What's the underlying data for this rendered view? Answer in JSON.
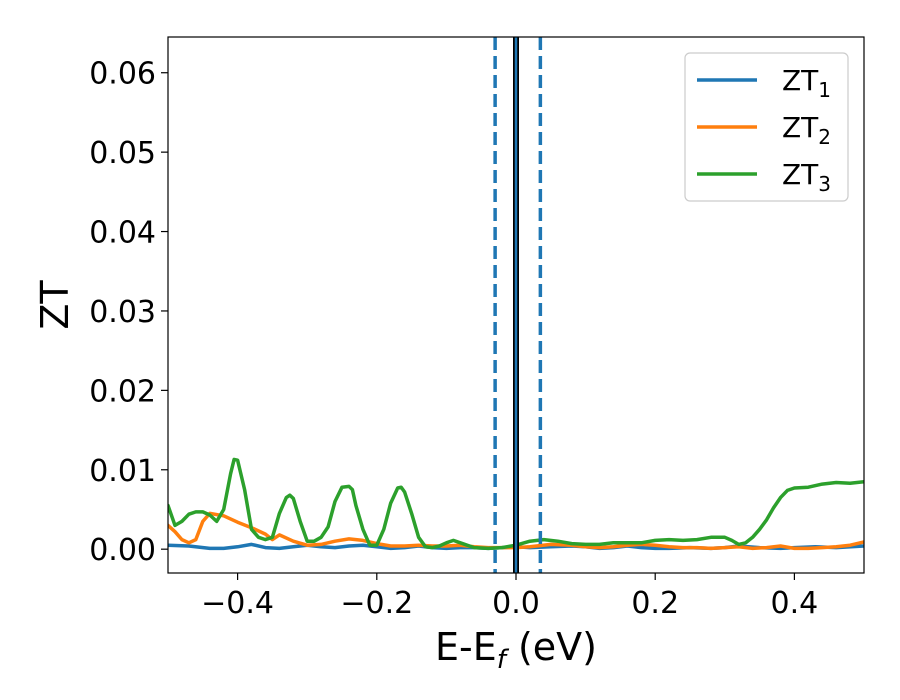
{
  "chart_data": {
    "type": "line",
    "xlabel": "E-E",
    "xlabel_sub": "f",
    "xlabel_unit": " (eV)",
    "ylabel": "ZT",
    "xlim": [
      -0.5,
      0.5
    ],
    "ylim": [
      -0.003,
      0.0645
    ],
    "grid": false,
    "legend_position": "top-right",
    "x_ticks": [
      -0.4,
      -0.2,
      0.0,
      0.2,
      0.4
    ],
    "x_tick_labels": [
      "−0.4",
      "−0.2",
      "0.0",
      "0.2",
      "0.4"
    ],
    "y_ticks": [
      0.0,
      0.01,
      0.02,
      0.03,
      0.04,
      0.05,
      0.06
    ],
    "y_tick_labels": [
      "0.00",
      "0.01",
      "0.02",
      "0.03",
      "0.04",
      "0.05",
      "0.06"
    ],
    "vertical_lines": [
      {
        "x": 0.0,
        "color": "#000000",
        "style": "solid"
      },
      {
        "x": 0.0,
        "color": "#1f77b4",
        "style": "solid"
      },
      {
        "x": -0.03,
        "color": "#1f77b4",
        "style": "dashed"
      },
      {
        "x": 0.035,
        "color": "#1f77b4",
        "style": "dashed"
      }
    ],
    "series": [
      {
        "name": "ZT",
        "sub": "1",
        "color": "#1f77b4",
        "x": [
          -0.5,
          -0.47,
          -0.44,
          -0.42,
          -0.4,
          -0.38,
          -0.36,
          -0.34,
          -0.32,
          -0.3,
          -0.28,
          -0.26,
          -0.24,
          -0.22,
          -0.2,
          -0.18,
          -0.16,
          -0.14,
          -0.12,
          -0.1,
          -0.08,
          -0.06,
          -0.04,
          -0.02,
          0.0,
          0.02,
          0.05,
          0.08,
          0.1,
          0.12,
          0.14,
          0.16,
          0.18,
          0.2,
          0.22,
          0.25,
          0.28,
          0.3,
          0.32,
          0.35,
          0.38,
          0.4,
          0.43,
          0.46,
          0.5
        ],
        "y": [
          0.0005,
          0.0004,
          0.0001,
          0.0001,
          0.0003,
          0.0006,
          0.0002,
          0.0001,
          0.0003,
          0.0005,
          0.0003,
          0.0002,
          0.0004,
          0.0005,
          0.0003,
          0.0001,
          0.0002,
          0.0004,
          0.0002,
          0.0001,
          0.0002,
          0.0002,
          0.0001,
          0.0002,
          0.0003,
          0.0002,
          0.0003,
          0.0004,
          0.0003,
          0.0001,
          0.0002,
          0.0004,
          0.0002,
          0.0001,
          0.0001,
          0.0002,
          0.0001,
          0.0002,
          0.0004,
          0.0002,
          0.0001,
          0.0002,
          0.0003,
          0.0002,
          0.0004
        ]
      },
      {
        "name": "ZT",
        "sub": "2",
        "color": "#ff7f0e",
        "x": [
          -0.5,
          -0.49,
          -0.48,
          -0.47,
          -0.46,
          -0.45,
          -0.44,
          -0.42,
          -0.4,
          -0.38,
          -0.36,
          -0.35,
          -0.34,
          -0.32,
          -0.3,
          -0.28,
          -0.26,
          -0.24,
          -0.22,
          -0.2,
          -0.18,
          -0.16,
          -0.14,
          -0.12,
          -0.1,
          -0.08,
          -0.06,
          -0.04,
          -0.02,
          0.0,
          0.02,
          0.05,
          0.08,
          0.1,
          0.12,
          0.14,
          0.16,
          0.18,
          0.2,
          0.22,
          0.24,
          0.26,
          0.28,
          0.3,
          0.32,
          0.34,
          0.36,
          0.38,
          0.4,
          0.42,
          0.44,
          0.46,
          0.48,
          0.5
        ],
        "y": [
          0.003,
          0.0022,
          0.0012,
          0.0008,
          0.0012,
          0.0035,
          0.0045,
          0.0042,
          0.0034,
          0.0027,
          0.0019,
          0.0012,
          0.0018,
          0.001,
          0.0005,
          0.0006,
          0.001,
          0.0013,
          0.0011,
          0.0007,
          0.0004,
          0.0004,
          0.0005,
          0.0004,
          0.0004,
          0.0005,
          0.0003,
          0.0002,
          0.0002,
          0.0002,
          0.0003,
          0.0006,
          0.0005,
          0.0003,
          0.0002,
          0.0003,
          0.0005,
          0.0006,
          0.0005,
          0.0003,
          0.0002,
          0.0002,
          0.0001,
          0.0002,
          0.0003,
          0.0001,
          0.0002,
          0.0004,
          0.0001,
          0.0001,
          0.0002,
          0.0003,
          0.0005,
          0.0009
        ]
      },
      {
        "name": "ZT",
        "sub": "3",
        "color": "#2ca02c",
        "x": [
          -0.5,
          -0.49,
          -0.48,
          -0.47,
          -0.46,
          -0.45,
          -0.44,
          -0.43,
          -0.42,
          -0.41,
          -0.405,
          -0.4,
          -0.39,
          -0.38,
          -0.37,
          -0.36,
          -0.35,
          -0.34,
          -0.33,
          -0.325,
          -0.32,
          -0.31,
          -0.3,
          -0.29,
          -0.28,
          -0.27,
          -0.26,
          -0.25,
          -0.24,
          -0.235,
          -0.23,
          -0.22,
          -0.21,
          -0.2,
          -0.19,
          -0.18,
          -0.17,
          -0.165,
          -0.16,
          -0.15,
          -0.14,
          -0.13,
          -0.12,
          -0.11,
          -0.1,
          -0.09,
          -0.08,
          -0.06,
          -0.04,
          -0.02,
          0.0,
          0.02,
          0.04,
          0.06,
          0.08,
          0.1,
          0.12,
          0.14,
          0.16,
          0.18,
          0.2,
          0.22,
          0.24,
          0.26,
          0.28,
          0.3,
          0.31,
          0.32,
          0.33,
          0.34,
          0.35,
          0.36,
          0.37,
          0.38,
          0.39,
          0.4,
          0.42,
          0.44,
          0.46,
          0.48,
          0.5
        ],
        "y": [
          0.0055,
          0.003,
          0.0035,
          0.0044,
          0.0047,
          0.0047,
          0.0043,
          0.0035,
          0.005,
          0.0095,
          0.0113,
          0.0112,
          0.0075,
          0.0025,
          0.0015,
          0.0012,
          0.0015,
          0.0045,
          0.0065,
          0.0068,
          0.0064,
          0.0035,
          0.001,
          0.001,
          0.0015,
          0.0028,
          0.006,
          0.0078,
          0.0079,
          0.0075,
          0.0055,
          0.0025,
          0.0005,
          0.0005,
          0.0025,
          0.0058,
          0.0077,
          0.0078,
          0.0072,
          0.0045,
          0.0015,
          0.0003,
          0.0002,
          0.0004,
          0.0008,
          0.0011,
          0.0008,
          0.0002,
          0.0001,
          0.0002,
          0.0005,
          0.001,
          0.0012,
          0.001,
          0.0007,
          0.0006,
          0.0006,
          0.0008,
          0.0008,
          0.0008,
          0.0011,
          0.0012,
          0.0011,
          0.0012,
          0.0015,
          0.0015,
          0.0011,
          0.0006,
          0.0008,
          0.0015,
          0.0025,
          0.0037,
          0.0052,
          0.0065,
          0.0074,
          0.0077,
          0.0078,
          0.0082,
          0.0084,
          0.0083,
          0.0085
        ]
      }
    ]
  }
}
